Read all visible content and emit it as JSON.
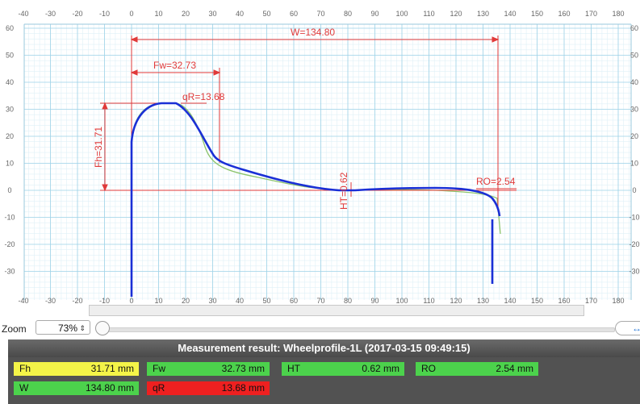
{
  "plot": {
    "x_ticks": [
      "-40",
      "-30",
      "-20",
      "-10",
      "0",
      "10",
      "20",
      "30",
      "40",
      "50",
      "60",
      "70",
      "80",
      "90",
      "100",
      "110",
      "120",
      "130",
      "140",
      "150",
      "160",
      "170",
      "180"
    ],
    "y_ticks": [
      "60",
      "50",
      "40",
      "30",
      "20",
      "10",
      "0",
      "-10",
      "-20",
      "-30"
    ],
    "dims": {
      "w": "W=134.80",
      "fw": "Fw=32.73",
      "fh": "Fh=31.71",
      "qr": "qR=13.68",
      "ht": "HT=0.62",
      "ro": "RO=2.54"
    },
    "colors": {
      "measured": "#1a2fd6",
      "reference": "#8cc46c",
      "dimension": "#e03a3a",
      "grid": "#9fd3e8"
    }
  },
  "zoom": {
    "label": "Zoom",
    "value": "73%",
    "arrow": "⇕",
    "fit_icon": "↔"
  },
  "results": {
    "title": "Measurement result: Wheelprofile-1L (2017-03-15 09:49:15)",
    "items": [
      {
        "name": "Fh",
        "value": "31.71 mm",
        "color": "#f4f448"
      },
      {
        "name": "Fw",
        "value": "32.73 mm",
        "color": "#4cd24c"
      },
      {
        "name": "HT",
        "value": "0.62 mm",
        "color": "#4cd24c"
      },
      {
        "name": "RO",
        "value": "2.54 mm",
        "color": "#4cd24c"
      },
      {
        "name": "W",
        "value": "134.80 mm",
        "color": "#4cd24c"
      },
      {
        "name": "qR",
        "value": "13.68 mm",
        "color": "#ee2020"
      }
    ]
  }
}
